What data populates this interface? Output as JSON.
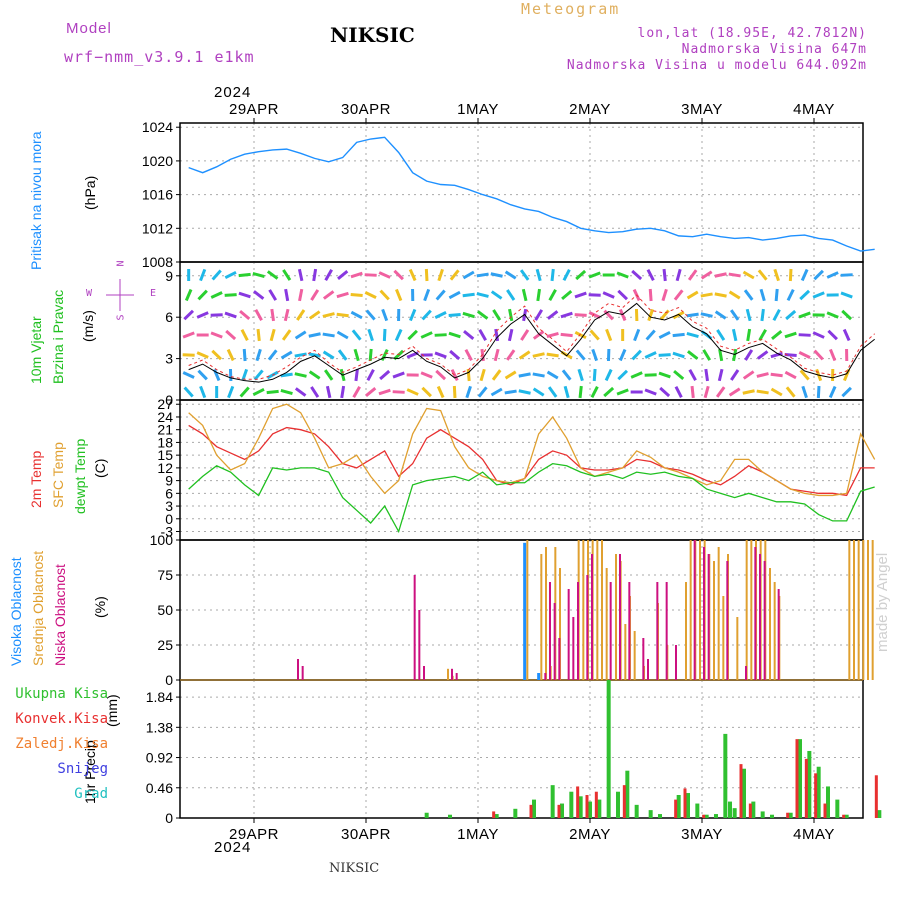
{
  "header": {
    "model_label": "Model",
    "model_name": "wrf−nmm_v3.9.1  e1km",
    "station": "NIKSIC",
    "meteogram": "Meteogram",
    "lonlat": "lon,lat (18.95E, 42.7812N)",
    "altitude": "Nadmorska Visina 647m",
    "model_altitude": "Nadmorska Visina u modelu 644.092m",
    "year_top": "2024",
    "year_bottom": "2024",
    "footer": "NIKSIC",
    "watermark": "made by Angel"
  },
  "colors": {
    "pressure": "#1e90ff",
    "temp2m": "#e83030",
    "sfc_temp": "#e0a030",
    "dewpt": "#20c020",
    "high_cloud": "#1e90ff",
    "mid_cloud": "#e0a030",
    "low_cloud": "#cc1080",
    "total_precip": "#30c030",
    "conv_precip": "#e83030",
    "frozen_precip": "#f08030",
    "snow": "#4040e0",
    "grad": "#20c0c0",
    "model_label": "#b040c0"
  },
  "chart_data": [
    {
      "type": "line",
      "panel": "pressure",
      "ylabel_1": "Pritisak na nivou mora",
      "ylabel_2": "(hPa)",
      "ylim": [
        1008,
        1024.5
      ],
      "yticks": [
        1008,
        1012,
        1016,
        1020,
        1024
      ],
      "grid": true,
      "x_categories": [
        "29APR",
        "30APR",
        "1MAY",
        "2MAY",
        "3MAY",
        "4MAY"
      ],
      "x_hours": [
        0,
        3,
        6,
        9,
        12,
        15,
        18,
        21,
        24,
        27,
        30,
        33,
        36,
        39,
        42,
        45,
        48,
        51,
        54,
        57,
        60,
        63,
        66,
        69,
        72,
        75,
        78,
        81,
        84,
        87,
        90,
        93,
        96,
        99,
        102,
        105,
        108,
        111,
        114,
        117,
        120,
        123,
        126,
        129,
        132,
        135,
        138,
        141,
        144,
        147
      ],
      "series": [
        {
          "name": "Pritisak",
          "values": [
            1019.2,
            1018.6,
            1019.3,
            1020.2,
            1020.8,
            1021.1,
            1021.3,
            1021.4,
            1020.9,
            1020.3,
            1019.9,
            1020.4,
            1022.2,
            1022.6,
            1022.8,
            1021.0,
            1018.6,
            1017.6,
            1017.2,
            1017.1,
            1016.6,
            1016.0,
            1015.5,
            1014.8,
            1014.3,
            1014.0,
            1013.3,
            1012.8,
            1012.0,
            1011.7,
            1011.5,
            1011.6,
            1011.9,
            1012.0,
            1011.7,
            1011.1,
            1011.0,
            1011.3,
            1011.0,
            1010.8,
            1010.9,
            1010.6,
            1010.8,
            1011.1,
            1011.2,
            1010.8,
            1010.6,
            1009.9,
            1009.3,
            1009.5
          ]
        }
      ]
    },
    {
      "type": "line",
      "panel": "wind",
      "ylabel_1": "10m Vjetar",
      "ylabel_2": "Brzina i Pravac",
      "ylabel_3": "(m/s)",
      "compass": {
        "n": "N",
        "w": "W",
        "e": "E",
        "s": "S"
      },
      "ylim": [
        0,
        10
      ],
      "yticks": [
        0,
        3,
        6,
        9
      ],
      "grid": true,
      "x_hours": [
        0,
        3,
        6,
        9,
        12,
        15,
        18,
        21,
        24,
        27,
        30,
        33,
        36,
        39,
        42,
        45,
        48,
        51,
        54,
        57,
        60,
        63,
        66,
        69,
        72,
        75,
        78,
        81,
        84,
        87,
        90,
        93,
        96,
        99,
        102,
        105,
        108,
        111,
        114,
        117,
        120,
        123,
        126,
        129,
        132,
        135,
        138,
        141,
        144,
        147
      ],
      "series": [
        {
          "name": "speed",
          "values": [
            2.2,
            2.6,
            2.0,
            1.6,
            1.4,
            1.3,
            1.5,
            2.0,
            2.8,
            3.2,
            2.5,
            1.8,
            2.2,
            2.6,
            3.1,
            3.0,
            3.6,
            2.8,
            2.4,
            1.6,
            2.0,
            3.0,
            4.5,
            5.5,
            6.2,
            4.8,
            4.0,
            3.2,
            4.4,
            5.8,
            6.4,
            6.2,
            7.0,
            6.0,
            5.8,
            6.2,
            5.3,
            4.8,
            3.6,
            3.3,
            3.8,
            4.1,
            3.4,
            2.9,
            2.1,
            1.8,
            1.6,
            1.9,
            3.6,
            4.4
          ]
        },
        {
          "name": "gust",
          "values": [
            2.5,
            2.9,
            2.2,
            1.7,
            1.5,
            1.5,
            1.8,
            2.4,
            3.1,
            3.6,
            2.7,
            2.0,
            2.4,
            2.9,
            3.4,
            3.3,
            3.9,
            3.0,
            2.6,
            1.8,
            2.2,
            3.3,
            5.0,
            6.0,
            6.8,
            5.2,
            4.4,
            3.5,
            4.8,
            6.3,
            7.0,
            6.7,
            7.6,
            6.5,
            6.3,
            6.7,
            5.7,
            5.2,
            3.9,
            3.6,
            4.1,
            4.4,
            3.7,
            3.1,
            2.3,
            2.0,
            1.8,
            2.1,
            3.9,
            4.8
          ]
        }
      ]
    },
    {
      "type": "line",
      "panel": "temperature",
      "ylabel_1": "2m Temp",
      "ylabel_2": "SFC Temp",
      "ylabel_3": "dewpt Temp",
      "ylabel_4": "(C)",
      "ylim": [
        -5,
        28
      ],
      "yticks": [
        -3,
        0,
        3,
        6,
        9,
        12,
        15,
        18,
        21,
        24,
        27
      ],
      "grid": true,
      "x_hours": [
        0,
        3,
        6,
        9,
        12,
        15,
        18,
        21,
        24,
        27,
        30,
        33,
        36,
        39,
        42,
        45,
        48,
        51,
        54,
        57,
        60,
        63,
        66,
        69,
        72,
        75,
        78,
        81,
        84,
        87,
        90,
        93,
        96,
        99,
        102,
        105,
        108,
        111,
        114,
        117,
        120,
        123,
        126,
        129,
        132,
        135,
        138,
        141,
        144,
        147
      ],
      "series": [
        {
          "name": "2m Temp",
          "values": [
            22,
            20,
            17,
            15.5,
            14,
            16,
            20,
            21.5,
            21,
            20,
            17,
            13,
            12,
            14,
            16,
            10,
            13,
            19,
            21,
            19,
            17,
            14,
            9,
            8,
            9.5,
            14,
            16,
            15,
            12,
            11.5,
            11.5,
            12,
            14,
            13.5,
            12,
            11.5,
            10.5,
            9,
            8,
            10,
            12.5,
            11,
            9,
            7,
            6.5,
            6,
            6,
            5.5,
            12,
            12
          ]
        },
        {
          "name": "SFC Temp",
          "values": [
            25,
            22,
            15,
            11.5,
            13,
            19,
            26,
            27,
            25,
            19,
            12,
            13,
            15,
            10,
            6,
            9,
            20,
            26,
            25.5,
            17,
            12,
            10,
            9,
            8.5,
            9.5,
            20,
            24,
            19,
            12,
            10,
            11,
            12,
            16,
            14.5,
            12,
            11,
            9.5,
            8,
            9,
            14,
            14,
            11,
            9,
            7,
            6,
            5.5,
            5.5,
            6,
            20,
            14
          ]
        },
        {
          "name": "dewpt Temp",
          "values": [
            7,
            10,
            12.5,
            11,
            8,
            5.5,
            12,
            11.5,
            12,
            12,
            11,
            5,
            2,
            -1,
            3,
            -3,
            8,
            9,
            9.5,
            10,
            9,
            11,
            8,
            8.5,
            8.5,
            11,
            13,
            12.5,
            11,
            10,
            10.5,
            9.5,
            11,
            10.5,
            11,
            10,
            9.5,
            7,
            6,
            5,
            6,
            5,
            4,
            4,
            3.5,
            1,
            -0.5,
            -0.5,
            6.5,
            7.5
          ]
        }
      ]
    },
    {
      "type": "bar",
      "panel": "clouds",
      "ylabel_1": "Visoka Oblacnost",
      "ylabel_2": "Srednja Oblacnost",
      "ylabel_3": "Niska Oblacnost",
      "ylabel_4": "(%)",
      "ylim": [
        0,
        100
      ],
      "yticks": [
        0,
        25,
        50,
        75,
        100
      ],
      "grid": true,
      "series": [
        {
          "name": "Visoka",
          "hours": [
            72,
            75
          ],
          "values": [
            98,
            5
          ]
        },
        {
          "name": "Srednja",
          "hours": [
            56,
            57,
            73,
            76,
            77,
            78,
            79,
            80,
            84,
            85,
            86,
            87,
            88,
            89,
            90,
            92,
            93,
            94,
            95,
            96,
            98,
            101,
            103,
            107,
            108,
            109,
            110,
            111,
            112,
            113,
            114,
            115,
            116,
            118,
            120,
            121,
            122,
            123,
            124,
            125,
            126,
            127,
            142,
            143,
            144,
            145,
            146,
            147
          ],
          "values": [
            8,
            3,
            100,
            90,
            95,
            10,
            95,
            80,
            100,
            100,
            100,
            100,
            100,
            100,
            80,
            90,
            85,
            40,
            60,
            35,
            10,
            55,
            25,
            70,
            100,
            100,
            100,
            100,
            90,
            85,
            95,
            60,
            90,
            45,
            100,
            100,
            100,
            100,
            100,
            80,
            70,
            60,
            100,
            100,
            100,
            100,
            100,
            100
          ]
        },
        {
          "name": "Niska",
          "hours": [
            23,
            24,
            48,
            49,
            50,
            56,
            57,
            76,
            77,
            78,
            79,
            81,
            82,
            83,
            85,
            86,
            90,
            92,
            94,
            97,
            98,
            100,
            102,
            104,
            108,
            110,
            111,
            115,
            119,
            121,
            122,
            123,
            126
          ],
          "values": [
            15,
            10,
            75,
            50,
            10,
            8,
            5,
            5,
            70,
            55,
            30,
            65,
            45,
            70,
            75,
            90,
            70,
            90,
            70,
            30,
            15,
            70,
            70,
            25,
            100,
            95,
            90,
            85,
            10,
            95,
            90,
            85,
            65
          ]
        }
      ]
    },
    {
      "type": "bar",
      "panel": "precipitation",
      "ylabel_1": "1hr Precip",
      "ylabel_2": "(mm)",
      "legend": [
        "Ukupna  Kisa",
        "Konvek.Kisa",
        "Zaledj.Kisa",
        "Snijeg",
        "Grad"
      ],
      "ylim": [
        0,
        2.1
      ],
      "yticks": [
        0,
        0.46,
        0.92,
        1.38,
        1.84
      ],
      "grid": true,
      "series": [
        {
          "name": "Ukupna  Kisa",
          "hours": [
            51,
            56,
            66,
            70,
            74,
            78,
            80,
            82,
            84,
            86,
            88,
            90,
            92,
            94,
            96,
            99,
            101,
            105,
            107,
            109,
            111,
            113,
            115,
            116,
            117,
            119,
            121,
            123,
            125,
            129,
            131,
            133,
            135,
            137,
            139,
            141,
            148
          ],
          "values": [
            0.08,
            0.05,
            0.06,
            0.14,
            0.28,
            0.5,
            0.22,
            0.4,
            0.33,
            0.25,
            0.28,
            2.1,
            0.4,
            0.72,
            0.2,
            0.12,
            0.06,
            0.35,
            0.38,
            0.22,
            0.05,
            0.06,
            1.28,
            0.25,
            0.15,
            0.75,
            0.25,
            0.1,
            0.05,
            0.08,
            1.2,
            1.02,
            0.78,
            0.48,
            0.28,
            0.05,
            0.12
          ]
        },
        {
          "name": "Konvek.Kisa",
          "hours": [
            66,
            74,
            80,
            84,
            86,
            88,
            94,
            105,
            107,
            111,
            119,
            121,
            129,
            131,
            133,
            135,
            137,
            141,
            148
          ],
          "values": [
            0.1,
            0.2,
            0.2,
            0.48,
            0.35,
            0.4,
            0.5,
            0.28,
            0.45,
            0.05,
            0.82,
            0.22,
            0.08,
            1.2,
            0.9,
            0.68,
            0.22,
            0.05,
            0.65
          ]
        }
      ]
    }
  ]
}
